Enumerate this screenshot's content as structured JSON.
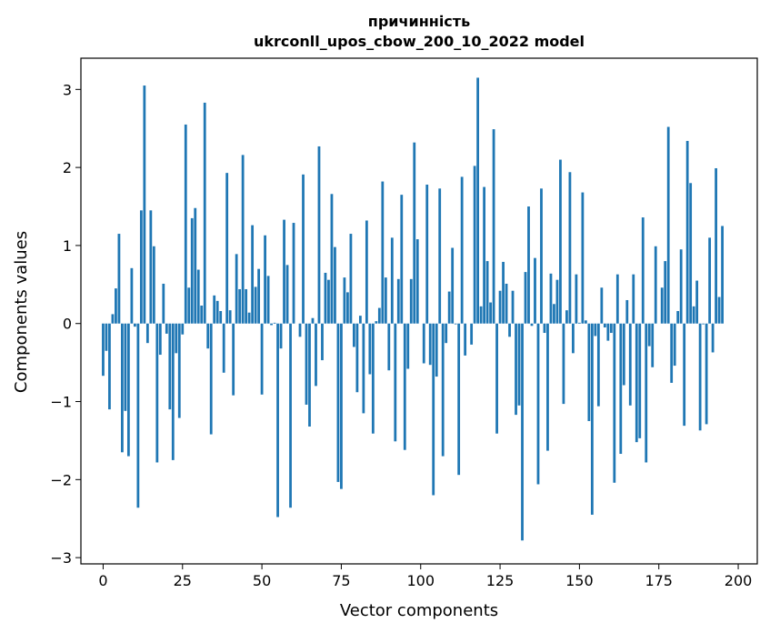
{
  "chart_data": {
    "type": "bar",
    "title_lines": [
      "причинність",
      "ukrconll_upos_cbow_200_10_2022 model"
    ],
    "xlabel": "Vector components",
    "ylabel": "Components values",
    "x_ticks": [
      0,
      25,
      50,
      75,
      100,
      125,
      150,
      175,
      200
    ],
    "y_ticks": [
      -3,
      -2,
      -1,
      0,
      1,
      2,
      3
    ],
    "xlim": [
      -7,
      206
    ],
    "ylim": [
      -3.08,
      3.4
    ],
    "grid": false,
    "bar_color": "#1f77b4",
    "values": [
      -0.67,
      -0.35,
      -1.1,
      0.12,
      0.45,
      1.15,
      -1.65,
      -1.12,
      -1.7,
      0.71,
      -0.04,
      -2.36,
      1.45,
      3.05,
      -0.25,
      1.45,
      0.99,
      -1.78,
      -0.4,
      0.51,
      -0.13,
      -1.1,
      -1.75,
      -0.38,
      -1.21,
      -0.14,
      2.55,
      0.46,
      1.35,
      1.48,
      0.69,
      0.23,
      2.83,
      -0.32,
      -1.42,
      0.36,
      0.29,
      0.16,
      -0.63,
      1.93,
      0.17,
      -0.92,
      0.89,
      0.44,
      2.16,
      0.44,
      0.14,
      1.26,
      0.47,
      0.7,
      -0.91,
      1.13,
      0.61,
      -0.02,
      0.01,
      -2.48,
      -0.32,
      1.33,
      0.75,
      -2.36,
      1.29,
      0.0,
      -0.17,
      1.91,
      -1.04,
      -1.32,
      0.07,
      -0.8,
      2.27,
      -0.47,
      0.65,
      0.56,
      1.66,
      0.98,
      -2.03,
      -2.12,
      0.59,
      0.4,
      1.15,
      -0.3,
      -0.88,
      0.1,
      -1.15,
      1.32,
      -0.65,
      -1.41,
      0.03,
      0.2,
      1.82,
      0.59,
      -0.6,
      1.1,
      -1.51,
      0.57,
      1.65,
      -1.62,
      -0.58,
      0.57,
      2.32,
      1.08,
      0.0,
      -0.51,
      1.78,
      -0.53,
      -2.2,
      -0.68,
      1.73,
      -1.7,
      -0.25,
      0.41,
      0.97,
      -0.01,
      -1.94,
      1.88,
      -0.41,
      0.0,
      -0.27,
      2.02,
      3.15,
      0.22,
      1.75,
      0.8,
      0.27,
      2.49,
      -1.41,
      0.42,
      0.79,
      0.51,
      -0.17,
      0.42,
      -1.17,
      -1.05,
      -2.78,
      0.66,
      1.5,
      -0.03,
      0.84,
      -2.06,
      1.73,
      -0.12,
      -1.63,
      0.64,
      0.25,
      0.56,
      2.1,
      -1.03,
      0.17,
      1.94,
      -0.38,
      0.63,
      0.01,
      1.68,
      0.04,
      -1.25,
      -2.45,
      -0.16,
      -1.06,
      0.46,
      -0.05,
      -0.22,
      -0.12,
      -2.04,
      0.63,
      -1.67,
      -0.79,
      0.3,
      -1.05,
      0.63,
      -1.52,
      -1.47,
      1.36,
      -1.78,
      -0.29,
      -0.56,
      0.99,
      0.0,
      0.46,
      0.8,
      2.52,
      -0.76,
      -0.54,
      0.16,
      0.95,
      -1.31,
      2.34,
      1.8,
      0.22,
      0.55,
      -1.37,
      -0.01,
      -1.29,
      1.1,
      -0.37,
      1.99,
      0.34,
      1.25
    ]
  }
}
